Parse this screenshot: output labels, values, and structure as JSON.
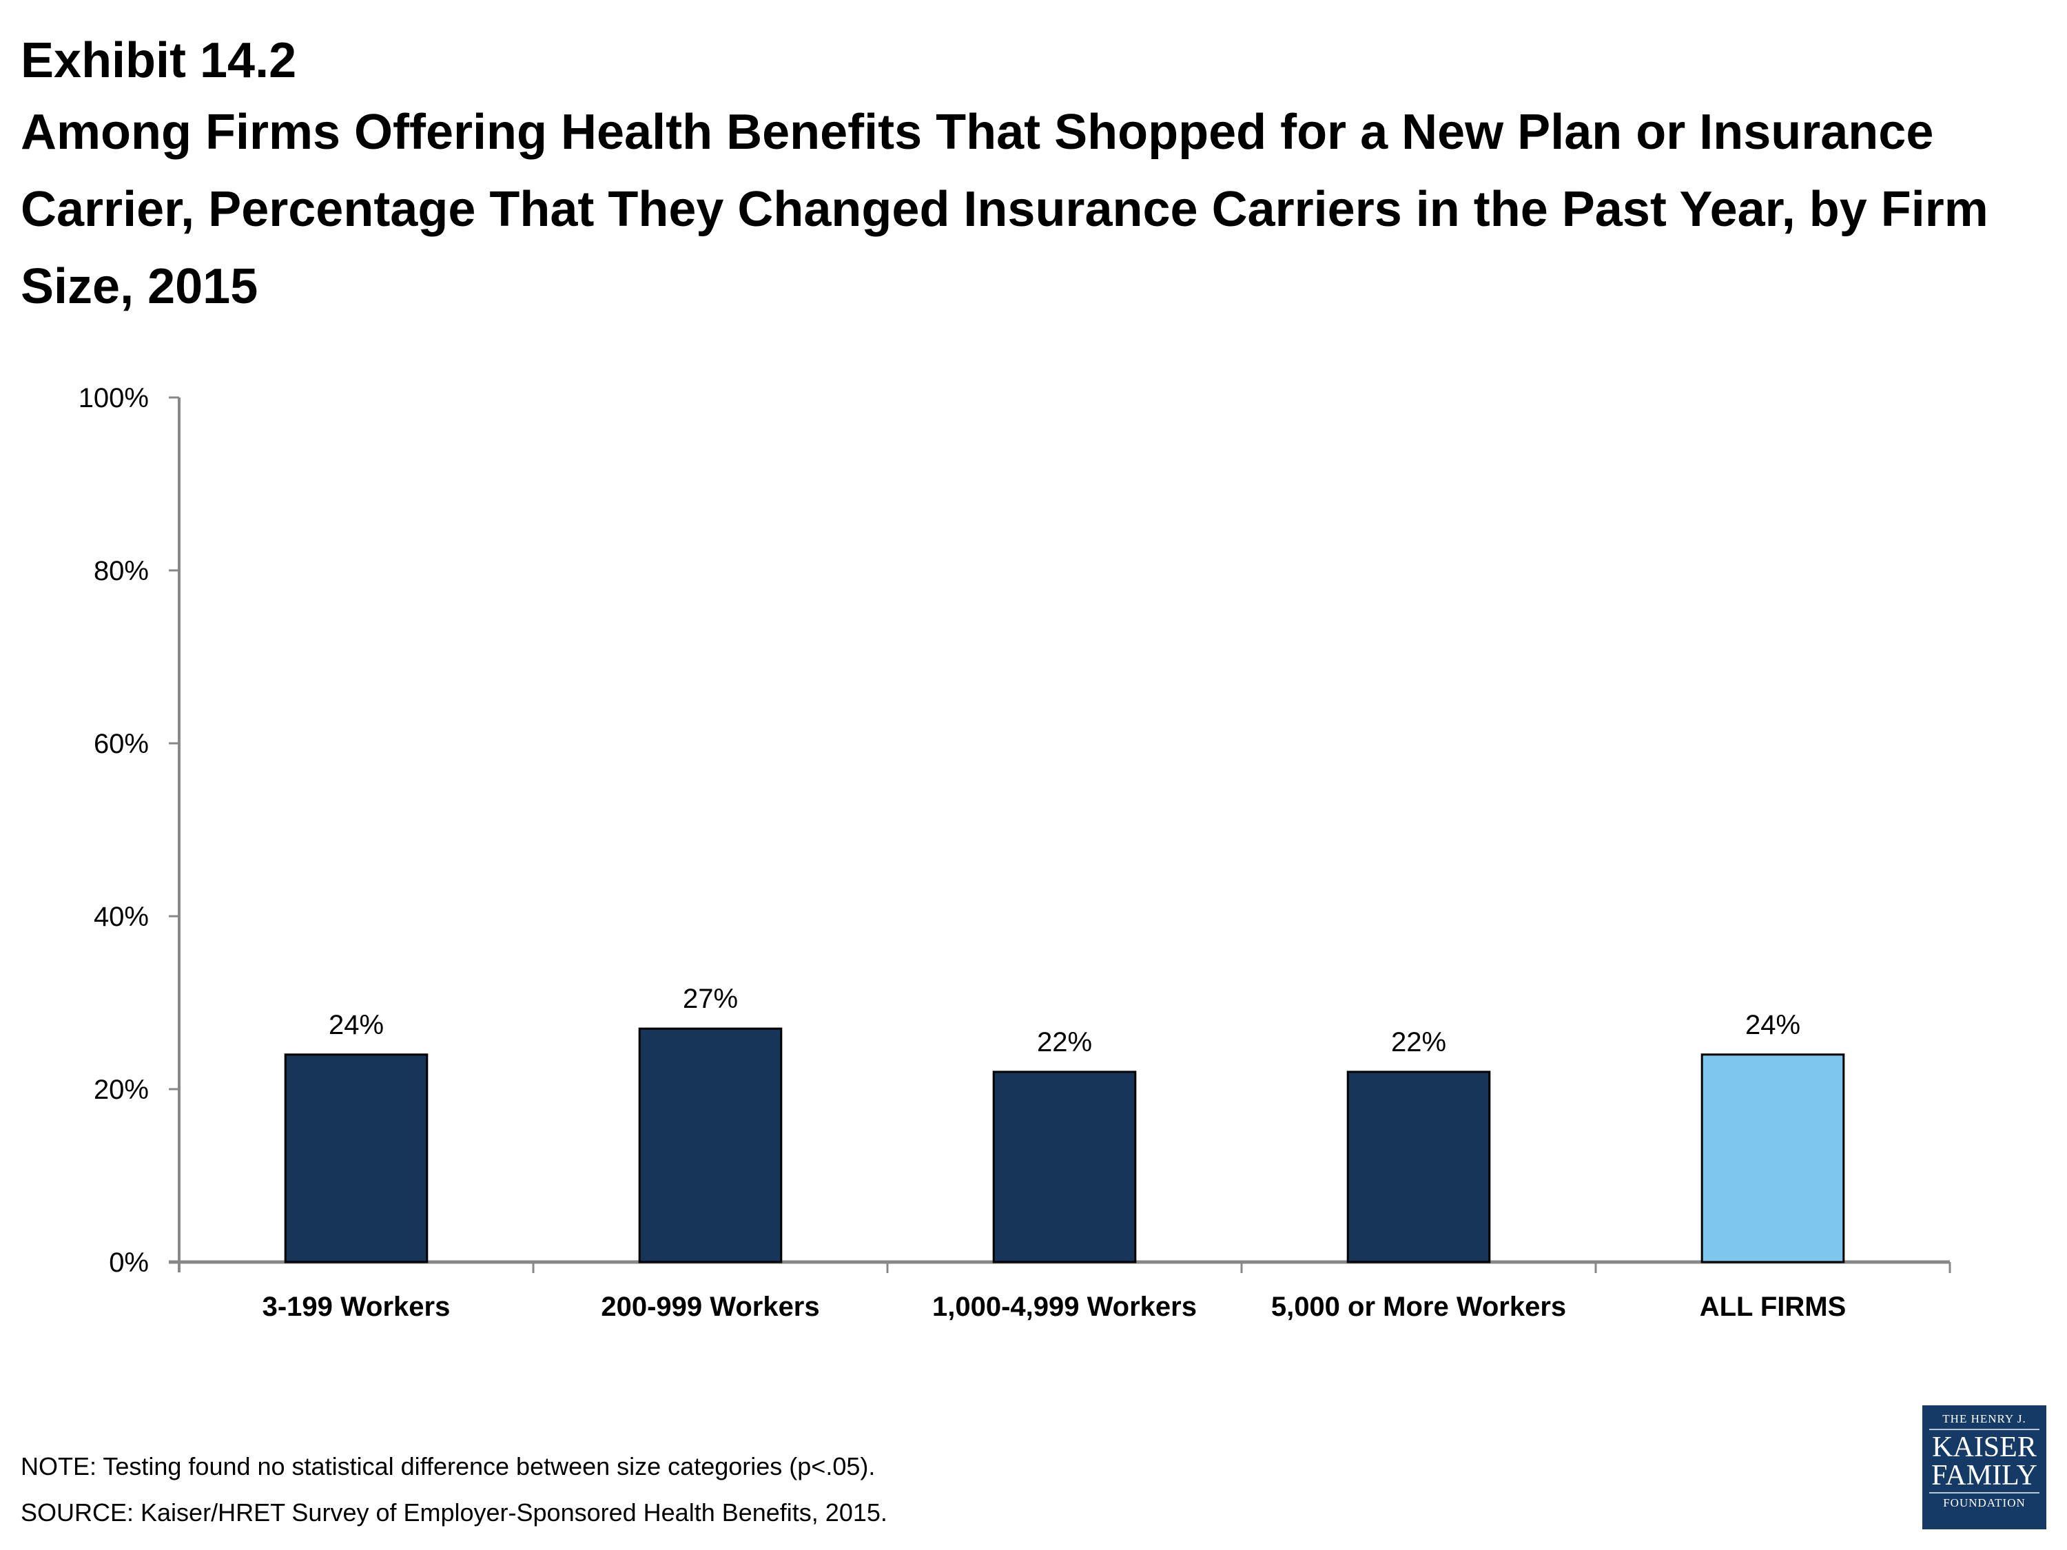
{
  "header": {
    "exhibit": "Exhibit 14.2",
    "title": "Among Firms Offering Health Benefits That Shopped for a New Plan or Insurance Carrier, Percentage That They Changed Insurance Carriers in the Past Year, by Firm Size, 2015"
  },
  "colors": {
    "firm_size_bar": "#163558",
    "all_firms_bar": "#7ec6ec",
    "axis": "#888888",
    "logo_bg": "#163a66"
  },
  "chart_data": {
    "type": "bar",
    "title": "Among Firms Offering Health Benefits That Shopped for a New Plan or Insurance Carrier, Percentage That They Changed Insurance Carriers in the Past Year, by Firm Size, 2015",
    "categories": [
      "3-199 Workers",
      "200-999 Workers",
      "1,000-4,999 Workers",
      "5,000 or More Workers",
      "ALL FIRMS"
    ],
    "values": [
      24,
      27,
      22,
      22,
      24
    ],
    "data_labels": [
      "24%",
      "27%",
      "22%",
      "22%",
      "24%"
    ],
    "highlight": [
      false,
      false,
      false,
      false,
      true
    ],
    "xlabel": "",
    "ylabel": "",
    "ylim": [
      0,
      100
    ],
    "yticks": [
      0,
      20,
      40,
      60,
      80,
      100
    ],
    "ytick_labels": [
      "0%",
      "20%",
      "40%",
      "60%",
      "80%",
      "100%"
    ],
    "grid": false,
    "legend": "none"
  },
  "footer": {
    "note": "NOTE: Testing found no statistical difference between size categories  (p<.05).",
    "source": "SOURCE: Kaiser/HRET Survey of Employer-Sponsored Health Benefits, 2015."
  },
  "logo": {
    "line1": "THE HENRY J.",
    "line2": "KAISER",
    "line3": "FAMILY",
    "line4": "FOUNDATION"
  }
}
